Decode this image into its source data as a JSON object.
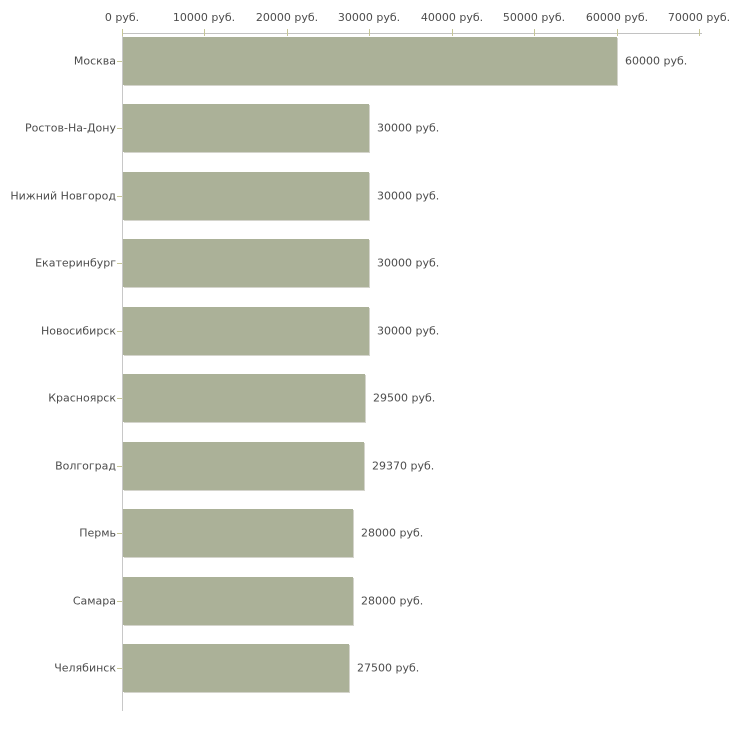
{
  "chart_data": {
    "type": "bar",
    "orientation": "horizontal",
    "title": "",
    "xlabel": "",
    "ylabel": "",
    "categories": [
      "Москва",
      "Ростов-На-Дону",
      "Нижний Новгород",
      "Екатеринбург",
      "Новосибирск",
      "Красноярск",
      "Волгоград",
      "Пермь",
      "Самара",
      "Челябинск"
    ],
    "values": [
      60000,
      30000,
      30000,
      30000,
      30000,
      29500,
      29370,
      28000,
      28000,
      27500
    ],
    "value_labels": [
      "60000 руб.",
      "30000 руб.",
      "30000 руб.",
      "30000 руб.",
      "30000 руб.",
      "29500 руб.",
      "29370 руб.",
      "28000 руб.",
      "28000 руб.",
      "27500 руб."
    ],
    "x_ticks": [
      0,
      10000,
      20000,
      30000,
      40000,
      50000,
      60000,
      70000
    ],
    "x_tick_labels": [
      "0 руб.",
      "10000 руб.",
      "20000 руб.",
      "30000 руб.",
      "40000 руб.",
      "50000 руб.",
      "60000 руб.",
      "70000 руб."
    ],
    "xlim": [
      0,
      70000
    ],
    "grid": false,
    "legend": false,
    "bar_color": "#abb198",
    "axis_color": "#c2c2c2",
    "tick_color": "#c6c696",
    "text_color": "#4d4d4d",
    "background_color": "#ffffff"
  }
}
